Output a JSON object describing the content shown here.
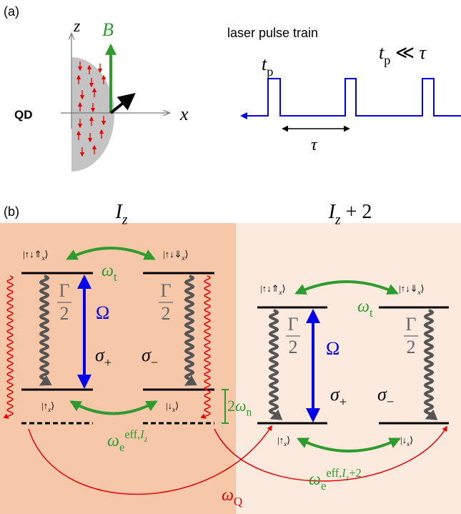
{
  "panel_a": {
    "label": "(a)",
    "z_axis": {
      "symbol": "z"
    },
    "field": {
      "symbol": "B"
    },
    "dot": "QD",
    "x_axis": {
      "symbol": "x"
    },
    "pulse_title": "laser pulse train",
    "pulse_width": {
      "symbol": "t",
      "sub": "p"
    },
    "condition": {
      "symbol": "t",
      "sub": "p",
      "relation": " ≪ ",
      "rhs": "τ"
    },
    "period": {
      "symbol": "τ"
    }
  },
  "panel_b": {
    "label": "(b)",
    "left": {
      "title": {
        "symbol": "I",
        "sub_var": "z"
      },
      "upper_plus": {
        "text": "|↑↓⇑",
        "sub_var": "x",
        "close": "⟩"
      },
      "upper_minus": {
        "text": "|↑↓⇓",
        "sub_var": "x",
        "close": "⟩"
      },
      "lower_up": {
        "text": "|↑",
        "sub_var": "x",
        "close": "⟩"
      },
      "lower_down": {
        "text": "|↓",
        "sub_var": "x",
        "close": "⟩"
      },
      "tunneling": {
        "symbol": "ω",
        "sub": "t"
      },
      "decay_left": {
        "numerator": "Γ",
        "denominator": "2"
      },
      "decay_right": {
        "numerator": "Γ",
        "denominator": "2"
      },
      "rabi": {
        "text": "Ω"
      },
      "sigma_plus": {
        "symbol": "σ",
        "sub": "+"
      },
      "sigma_minus": {
        "symbol": "σ",
        "sub": "−"
      },
      "nuclear_splitting": {
        "text": "2",
        "symbol": "ω",
        "sub": "n"
      },
      "electron_splitting": {
        "symbol": "ω",
        "sub": "e",
        "sup": "eff,",
        "sup_var": "I",
        "sup_sub": "z"
      }
    },
    "right": {
      "title": {
        "symbol": "I",
        "sub_var": "z",
        "tail": " + 2"
      },
      "upper_plus": {
        "text": "|↑↓⇑",
        "sub_var": "x",
        "close": "⟩"
      },
      "upper_minus": {
        "text": "|↑↓⇓",
        "sub_var": "x",
        "close": "⟩"
      },
      "lower_up": {
        "text": "|↑",
        "sub_var": "x",
        "close": "⟩"
      },
      "lower_down": {
        "text": "|↓",
        "sub_var": "x",
        "close": "⟩"
      },
      "tunneling": {
        "symbol": "ω",
        "sub": "t"
      },
      "decay_left": {
        "numerator": "Γ",
        "denominator": "2"
      },
      "decay_right": {
        "numerator": "Γ",
        "denominator": "2"
      },
      "rabi": {
        "text": "Ω"
      },
      "sigma_plus": {
        "symbol": "σ",
        "sub": "+"
      },
      "sigma_minus": {
        "symbol": "σ",
        "sub": "−"
      },
      "electron_splitting": {
        "symbol": "ω",
        "sub": "e",
        "sup": "eff,",
        "sup_var": "I",
        "sup_sub": "z",
        "sup_tail": "+2"
      }
    },
    "quadrupolar": {
      "symbol": "ω",
      "sub": "Q"
    }
  }
}
